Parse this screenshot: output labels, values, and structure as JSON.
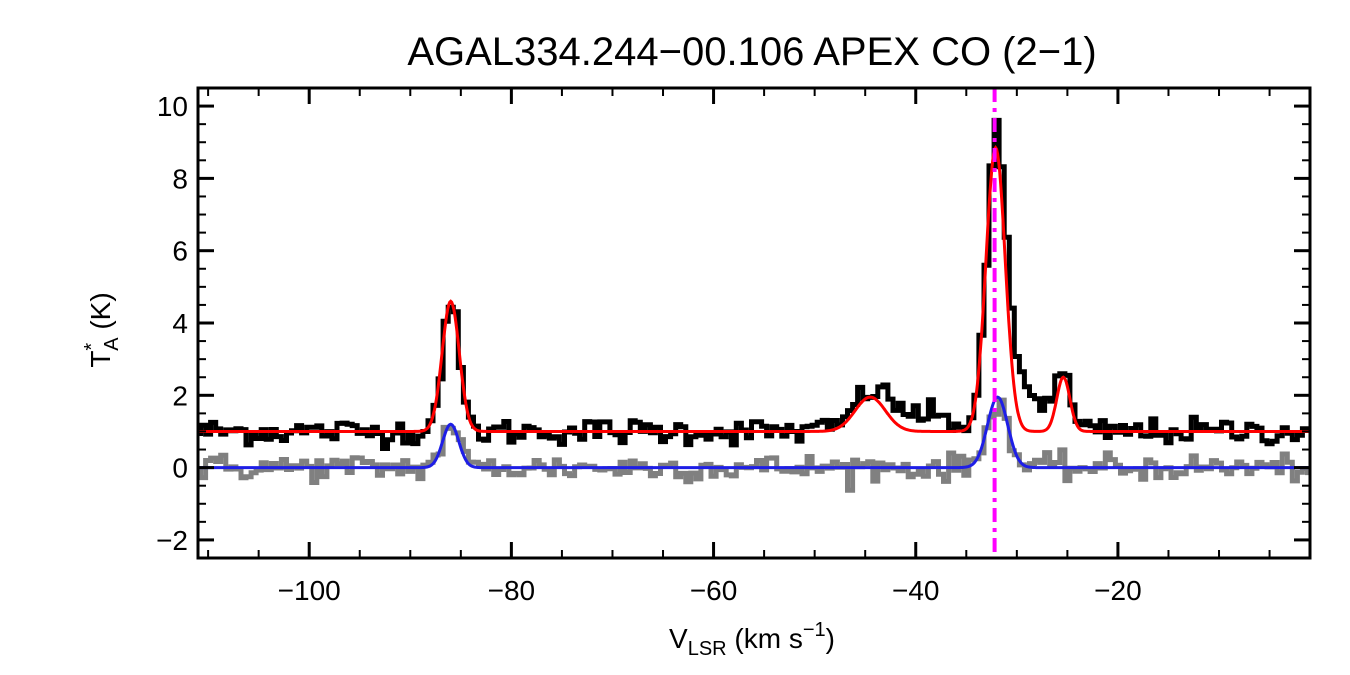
{
  "chart_data": {
    "type": "line",
    "title": "AGAL334.244−00.106  APEX CO (2−1)",
    "xlabel": {
      "base": "V",
      "sub": "LSR",
      "rest": " (km s",
      "sup": "−1",
      "end": ")"
    },
    "ylabel": {
      "base": "T",
      "sup": "*",
      "sub": "A",
      "rest": " (K)"
    },
    "xlim": [
      -111,
      -1
    ],
    "ylim": [
      -2.5,
      10.5
    ],
    "x_ticks": [
      -100,
      -80,
      -60,
      -40,
      -20
    ],
    "x_tick_labels": [
      "−100",
      "−80",
      "−60",
      "−40",
      "−20"
    ],
    "y_ticks": [
      -2,
      0,
      2,
      4,
      6,
      8,
      10
    ],
    "y_tick_labels": [
      "−2",
      "0",
      "2",
      "4",
      "6",
      "8",
      "10"
    ],
    "x_minor_step": 5,
    "y_minor_step": 0.5,
    "grid": false,
    "legend": "none",
    "reference_line": {
      "x": -32.2,
      "color": "#ff00ff",
      "style": "dash-dot"
    },
    "series": [
      {
        "role": "observed-spectrum-offset",
        "style": "step",
        "color": "#000000",
        "offset": 1.0,
        "noise": 0.18,
        "components": [
          {
            "center": -86.0,
            "amp": 3.5,
            "sigma": 0.85
          },
          {
            "center": -44.5,
            "amp": 0.9,
            "sigma": 1.6
          },
          {
            "center": -40.5,
            "amp": 0.5,
            "sigma": 3.5
          },
          {
            "center": -32.0,
            "amp": 7.6,
            "sigma": 0.95
          },
          {
            "center": -29.5,
            "amp": 1.3,
            "sigma": 2.0
          },
          {
            "center": -25.4,
            "amp": 1.5,
            "sigma": 0.7
          }
        ]
      },
      {
        "role": "fit-offset",
        "style": "line",
        "color": "#ff0000",
        "offset": 1.0,
        "components": [
          {
            "center": -86.0,
            "amp": 3.6,
            "sigma": 0.85
          },
          {
            "center": -44.5,
            "amp": 0.95,
            "sigma": 1.5
          },
          {
            "center": -32.1,
            "amp": 7.85,
            "sigma": 0.95
          },
          {
            "center": -25.4,
            "amp": 1.5,
            "sigma": 0.65
          }
        ]
      },
      {
        "role": "residual-spectrum",
        "style": "step",
        "color": "#808080",
        "offset": 0.0,
        "noise": 0.18,
        "components": [
          {
            "center": -86.0,
            "amp": 1.25,
            "sigma": 0.8
          },
          {
            "center": -31.9,
            "amp": 1.9,
            "sigma": 1.0
          }
        ]
      },
      {
        "role": "residual-fit",
        "style": "line",
        "color": "#1e1ee6",
        "offset": 0.0,
        "components": [
          {
            "center": -86.0,
            "amp": 1.2,
            "sigma": 0.8
          },
          {
            "center": -31.9,
            "amp": 1.95,
            "sigma": 1.0
          }
        ]
      }
    ],
    "channel_width": 0.5
  }
}
